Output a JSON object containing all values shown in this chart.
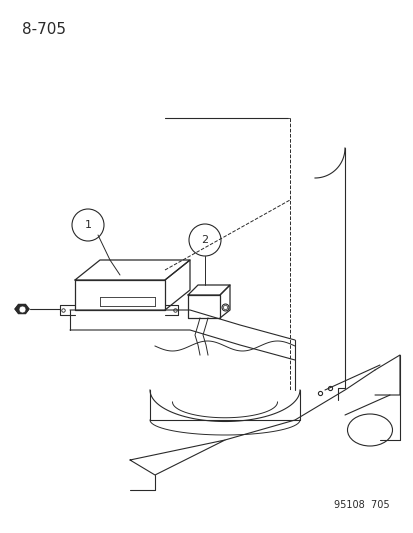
{
  "title": "8-705",
  "watermark": "95108  705",
  "bg_color": "#ffffff",
  "line_color": "#2a2a2a",
  "title_fontsize": 11,
  "watermark_fontsize": 7
}
